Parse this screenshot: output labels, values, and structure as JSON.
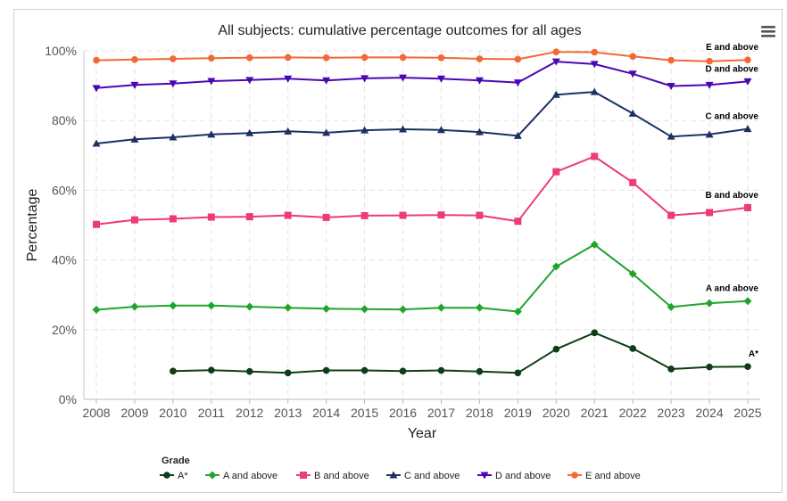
{
  "chart_data": {
    "type": "line",
    "title": "All subjects: cumulative percentage outcomes for all ages",
    "xlabel": "Year",
    "ylabel": "Percentage",
    "ylim": [
      0,
      100
    ],
    "yticks": [
      0,
      20,
      40,
      60,
      80,
      100
    ],
    "ytick_labels": [
      "0%",
      "20%",
      "40%",
      "60%",
      "80%",
      "100%"
    ],
    "grid": true,
    "legend_title": "Grade",
    "legend_position": "bottom-left",
    "categories": [
      "2008",
      "2009",
      "2010",
      "2011",
      "2012",
      "2013",
      "2014",
      "2015",
      "2016",
      "2017",
      "2018",
      "2019",
      "2020",
      "2021",
      "2022",
      "2023",
      "2024",
      "2025"
    ],
    "series": [
      {
        "name": "A*",
        "label": "A*",
        "color": "#0d3d14",
        "marker": "circle",
        "values": [
          null,
          null,
          8.1,
          8.4,
          8.0,
          7.6,
          8.3,
          8.3,
          8.1,
          8.3,
          8.0,
          7.6,
          14.4,
          19.1,
          14.6,
          8.7,
          9.3,
          9.4
        ]
      },
      {
        "name": "A and above",
        "label": "A and above",
        "color": "#1fa52c",
        "marker": "diamond",
        "values": [
          25.7,
          26.6,
          26.9,
          26.9,
          26.6,
          26.3,
          26.0,
          25.9,
          25.8,
          26.3,
          26.3,
          25.2,
          38.1,
          44.4,
          36.0,
          26.5,
          27.6,
          28.2
        ]
      },
      {
        "name": "B and above",
        "label": "B and above",
        "color": "#ed3a78",
        "marker": "square",
        "values": [
          50.2,
          51.5,
          51.8,
          52.3,
          52.4,
          52.8,
          52.2,
          52.7,
          52.8,
          52.9,
          52.8,
          51.1,
          65.3,
          69.7,
          62.2,
          52.8,
          53.6,
          55.0
        ]
      },
      {
        "name": "C and above",
        "label": "C and above",
        "color": "#1b3260",
        "marker": "triangle",
        "values": [
          73.4,
          74.6,
          75.2,
          76.0,
          76.4,
          76.9,
          76.5,
          77.2,
          77.5,
          77.3,
          76.7,
          75.6,
          87.4,
          88.2,
          82.0,
          75.4,
          76.0,
          77.6
        ]
      },
      {
        "name": "D and above",
        "label": "D and above",
        "color": "#4b06b4",
        "marker": "triangle-down",
        "values": [
          89.3,
          90.2,
          90.6,
          91.3,
          91.6,
          92.0,
          91.5,
          92.1,
          92.3,
          92.0,
          91.5,
          90.9,
          96.9,
          96.2,
          93.4,
          89.9,
          90.2,
          91.2
        ]
      },
      {
        "name": "E and above",
        "label": "E and above",
        "color": "#f26935",
        "marker": "circle",
        "values": [
          97.3,
          97.5,
          97.7,
          97.9,
          98.0,
          98.1,
          98.0,
          98.1,
          98.1,
          98.0,
          97.7,
          97.6,
          99.7,
          99.6,
          98.4,
          97.3,
          97.0,
          97.4
        ]
      }
    ]
  },
  "menu_icon": "hamburger-menu-icon"
}
